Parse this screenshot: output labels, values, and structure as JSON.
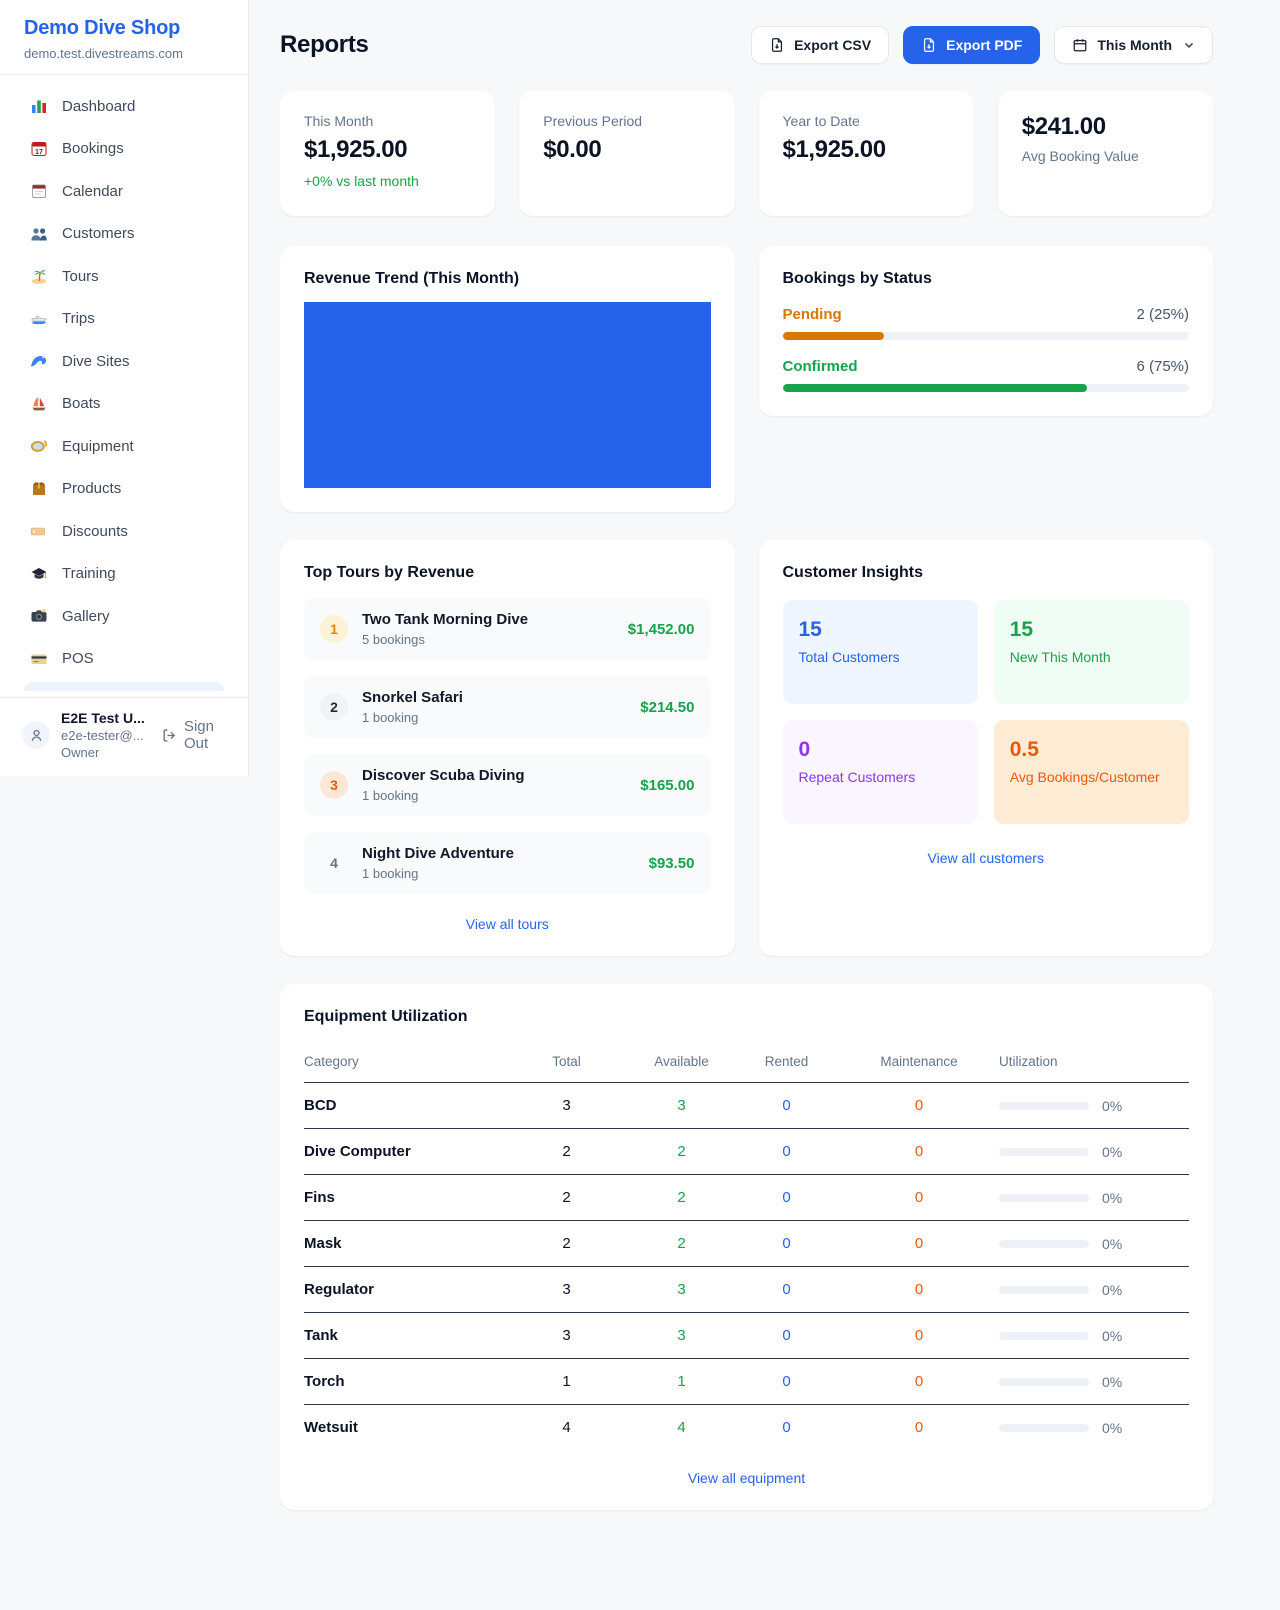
{
  "sidebar": {
    "title": "Demo Dive Shop",
    "subdomain": "demo.test.divestreams.com",
    "items": [
      {
        "label": "Dashboard",
        "icon": "bar-chart-icon"
      },
      {
        "label": "Bookings",
        "icon": "calendar-17-icon"
      },
      {
        "label": "Calendar",
        "icon": "tear-calendar-icon"
      },
      {
        "label": "Customers",
        "icon": "people-icon"
      },
      {
        "label": "Tours",
        "icon": "island-icon"
      },
      {
        "label": "Trips",
        "icon": "speedboat-icon"
      },
      {
        "label": "Dive Sites",
        "icon": "wave-icon"
      },
      {
        "label": "Boats",
        "icon": "sailboat-icon"
      },
      {
        "label": "Equipment",
        "icon": "dive-mask-icon"
      },
      {
        "label": "Products",
        "icon": "package-icon"
      },
      {
        "label": "Discounts",
        "icon": "tag-icon"
      },
      {
        "label": "Training",
        "icon": "graduation-cap-icon"
      },
      {
        "label": "Gallery",
        "icon": "camera-icon"
      },
      {
        "label": "POS",
        "icon": "credit-card-icon"
      }
    ],
    "user": {
      "name": "E2E Test U...",
      "email": "e2e-tester@...",
      "role": "Owner",
      "signout_label": "Sign Out"
    }
  },
  "header": {
    "title": "Reports",
    "export_csv_label": "Export CSV",
    "export_pdf_label": "Export PDF",
    "period_label": "This Month"
  },
  "stats": [
    {
      "label": "This Month",
      "value": "$1,925.00",
      "delta": "+0% vs last month"
    },
    {
      "label": "Previous Period",
      "value": "$0.00"
    },
    {
      "label": "Year to Date",
      "value": "$1,925.00"
    },
    {
      "label": "Avg Booking Value",
      "value": "$241.00"
    }
  ],
  "revenue_trend": {
    "title": "Revenue Trend (This Month)",
    "fill_color": "#2563eb"
  },
  "bookings_by_status": {
    "title": "Bookings by Status",
    "rows": [
      {
        "label": "Pending",
        "value": "2 (25%)",
        "pct": 25,
        "color": "#d97706"
      },
      {
        "label": "Confirmed",
        "value": "6 (75%)",
        "pct": 75,
        "color": "#16a34a"
      }
    ]
  },
  "top_tours": {
    "title": "Top Tours by Revenue",
    "link_label": "View all tours",
    "items": [
      {
        "rank": "1",
        "name": "Two Tank Morning Dive",
        "bookings": "5 bookings",
        "revenue": "$1,452.00"
      },
      {
        "rank": "2",
        "name": "Snorkel Safari",
        "bookings": "1 booking",
        "revenue": "$214.50"
      },
      {
        "rank": "3",
        "name": "Discover Scuba Diving",
        "bookings": "1 booking",
        "revenue": "$165.00"
      },
      {
        "rank": "4",
        "name": "Night Dive Adventure",
        "bookings": "1 booking",
        "revenue": "$93.50"
      }
    ]
  },
  "customer_insights": {
    "title": "Customer Insights",
    "link_label": "View all customers",
    "tiles": [
      {
        "value": "15",
        "label": "Total Customers"
      },
      {
        "value": "15",
        "label": "New This Month"
      },
      {
        "value": "0",
        "label": "Repeat Customers"
      },
      {
        "value": "0.5",
        "label": "Avg Bookings/Customer"
      }
    ]
  },
  "equipment": {
    "title": "Equipment Utilization",
    "link_label": "View all equipment",
    "columns": [
      "Category",
      "Total",
      "Available",
      "Rented",
      "Maintenance",
      "Utilization"
    ],
    "rows": [
      [
        "BCD",
        "3",
        "3",
        "0",
        "0",
        "0%"
      ],
      [
        "Dive Computer",
        "2",
        "2",
        "0",
        "0",
        "0%"
      ],
      [
        "Fins",
        "2",
        "2",
        "0",
        "0",
        "0%"
      ],
      [
        "Mask",
        "2",
        "2",
        "0",
        "0",
        "0%"
      ],
      [
        "Regulator",
        "3",
        "3",
        "0",
        "0",
        "0%"
      ],
      [
        "Tank",
        "3",
        "3",
        "0",
        "0",
        "0%"
      ],
      [
        "Torch",
        "1",
        "1",
        "0",
        "0",
        "0%"
      ],
      [
        "Wetsuit",
        "4",
        "4",
        "0",
        "0",
        "0%"
      ]
    ],
    "utilization_pcts": [
      0,
      0,
      0,
      0,
      0,
      0,
      0,
      0
    ]
  },
  "colors": {
    "accent_blue": "#2563eb",
    "money_green": "#16a34a",
    "pending_orange": "#d97706",
    "maintenance_orange": "#ea580c"
  }
}
